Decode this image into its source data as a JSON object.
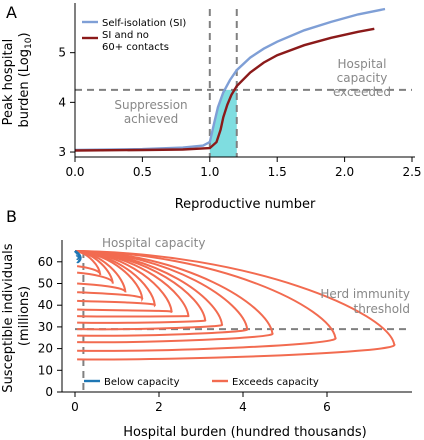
{
  "chart_data": [
    {
      "panel": "A",
      "type": "line",
      "xlabel": "Reproductive number",
      "ylabel_line1": "Peak hospital",
      "ylabel_line2_prefix": "burden (Log",
      "ylabel_line2_sub": "10",
      "ylabel_line2_suffix": ")",
      "xlim": [
        0.0,
        2.5
      ],
      "ylim": [
        2.9,
        6.0
      ],
      "xticks": [
        0.0,
        0.5,
        1.0,
        1.5,
        2.0,
        2.5
      ],
      "xtick_labels": [
        "0.0",
        "0.5",
        "1.0",
        "1.5",
        "2.0",
        "2.5"
      ],
      "yticks": [
        3,
        4,
        5
      ],
      "ytick_labels": [
        "3",
        "4",
        "5"
      ],
      "hospital_capacity_log": 4.25,
      "suppression_band": [
        1.0,
        1.2
      ],
      "annotations": {
        "hospital_capacity_exceeded_line1": "Hospital",
        "hospital_capacity_exceeded_line2": "capacity",
        "hospital_capacity_exceeded_line3": "exceeded",
        "suppression_achieved_line1": "Suppression",
        "suppression_achieved_line2": "achieved"
      },
      "legend": [
        "Self-isolation (SI)",
        "SI and no",
        "60+ contacts"
      ],
      "series": [
        {
          "name": "Self-isolation (SI)",
          "color": "#7f9fd6",
          "x": [
            0.0,
            0.5,
            0.8,
            0.95,
            1.0,
            1.03,
            1.06,
            1.1,
            1.15,
            1.2,
            1.3,
            1.4,
            1.5,
            1.7,
            1.9,
            2.1,
            2.3
          ],
          "y": [
            3.04,
            3.06,
            3.09,
            3.13,
            3.2,
            3.55,
            3.9,
            4.2,
            4.45,
            4.65,
            4.9,
            5.08,
            5.22,
            5.45,
            5.62,
            5.77,
            5.88
          ]
        },
        {
          "name": "SI and no 60+ contacts",
          "color": "#8b1a1a",
          "x": [
            0.0,
            0.5,
            0.8,
            1.0,
            1.05,
            1.08,
            1.1,
            1.13,
            1.16,
            1.2,
            1.3,
            1.4,
            1.5,
            1.7,
            1.9,
            2.1,
            2.22
          ],
          "y": [
            3.03,
            3.04,
            3.05,
            3.08,
            3.2,
            3.45,
            3.7,
            3.95,
            4.15,
            4.33,
            4.6,
            4.8,
            4.95,
            5.15,
            5.3,
            5.42,
            5.48
          ]
        }
      ]
    },
    {
      "panel": "B",
      "type": "line",
      "xlabel": "Hospital burden (hundred thousands)",
      "ylabel_line1": "Susceptible individuals",
      "ylabel_line2": "(millions)",
      "xlim": [
        -0.3,
        8.0
      ],
      "ylim": [
        0,
        66
      ],
      "xticks": [
        0,
        2,
        4,
        6
      ],
      "xtick_labels": [
        "0",
        "2",
        "4",
        "6"
      ],
      "yticks": [
        0,
        10,
        20,
        30,
        40,
        50,
        60
      ],
      "ytick_labels": [
        "0",
        "10",
        "20",
        "30",
        "40",
        "50",
        "60"
      ],
      "hospital_capacity_x": 0.2,
      "herd_immunity_y": 29,
      "annotations": {
        "hospital_capacity": "Hospital capacity",
        "herd_immunity_line1": "Herd immunity",
        "herd_immunity_line2": "threshold"
      },
      "legend": [
        "Below capacity",
        "Exceeds capacity"
      ],
      "colors": {
        "below": "#1f77b4",
        "exceeds": "#f26b50"
      },
      "top_value": 65,
      "exceeds_loops": [
        {
          "peak": 7.6,
          "end_y": 15,
          "s_peak": 22
        },
        {
          "peak": 6.2,
          "end_y": 19,
          "s_peak": 25
        },
        {
          "peak": 4.7,
          "end_y": 23,
          "s_peak": 27
        },
        {
          "peak": 4.1,
          "end_y": 26,
          "s_peak": 29
        },
        {
          "peak": 3.5,
          "end_y": 29,
          "s_peak": 31
        },
        {
          "peak": 3.1,
          "end_y": 32,
          "s_peak": 33
        },
        {
          "peak": 2.7,
          "end_y": 35,
          "s_peak": 35
        },
        {
          "peak": 2.3,
          "end_y": 38,
          "s_peak": 37
        },
        {
          "peak": 1.9,
          "end_y": 42,
          "s_peak": 40
        },
        {
          "peak": 1.6,
          "end_y": 46,
          "s_peak": 43
        },
        {
          "peak": 1.2,
          "end_y": 50,
          "s_peak": 46
        },
        {
          "peak": 0.9,
          "end_y": 55,
          "s_peak": 50
        },
        {
          "peak": 0.6,
          "end_y": 58,
          "s_peak": 54
        }
      ],
      "below_loops": [
        {
          "peak": 0.13,
          "end_y": 60,
          "s_peak": 62
        },
        {
          "peak": 0.09,
          "end_y": 61.5,
          "s_peak": 63
        },
        {
          "peak": 0.05,
          "end_y": 63,
          "s_peak": 64
        }
      ]
    }
  ],
  "panel_labels": [
    "A",
    "B"
  ]
}
